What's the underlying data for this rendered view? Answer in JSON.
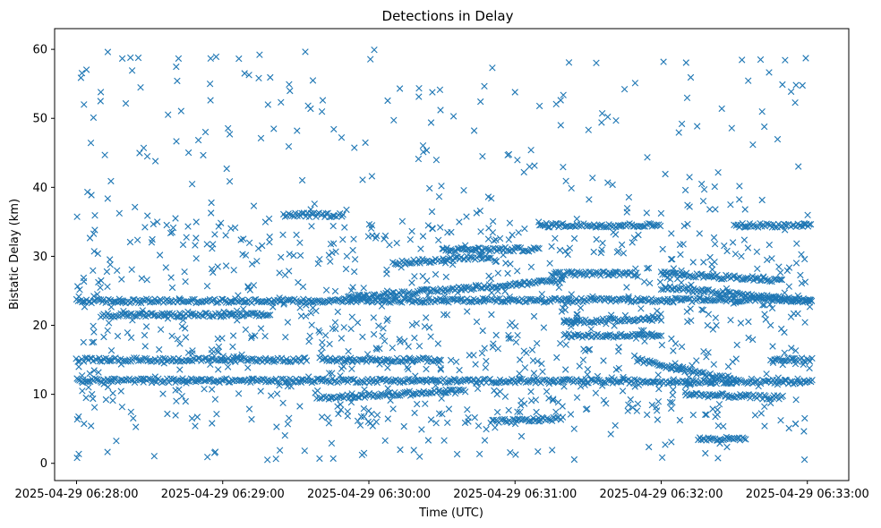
{
  "chart_data": {
    "type": "scatter",
    "title": "Detections in Delay",
    "xlabel": "Time (UTC)",
    "ylabel": "Bistatic Delay (km)",
    "marker": "x",
    "color": "#1f77b4",
    "grid": false,
    "xlim": [
      "2025-04-29 06:27:51",
      "2025-04-29 06:33:17"
    ],
    "ylim": [
      -2.5,
      63
    ],
    "x_ticks": [
      "2025-04-29 06:28:00",
      "2025-04-29 06:29:00",
      "2025-04-29 06:30:00",
      "2025-04-29 06:31:00",
      "2025-04-29 06:32:00",
      "2025-04-29 06:33:00"
    ],
    "y_ticks": [
      0,
      10,
      20,
      30,
      40,
      50,
      60
    ],
    "time_range": [
      "2025-04-29 06:28:00",
      "2025-04-29 06:33:02"
    ],
    "tracks": [
      {
        "t_start": 0,
        "t_end": 302,
        "delay_start": 23.5,
        "delay_end": 23.7
      },
      {
        "t_start": 0,
        "t_end": 95,
        "delay_start": 15.0,
        "delay_end": 15.0
      },
      {
        "t_start": 100,
        "t_end": 150,
        "delay_start": 15.0,
        "delay_end": 15.0
      },
      {
        "t_start": 0,
        "t_end": 120,
        "delay_start": 12.0,
        "delay_end": 12.0
      },
      {
        "t_start": 120,
        "t_end": 302,
        "delay_start": 12.0,
        "delay_end": 11.8
      },
      {
        "t_start": 10,
        "t_end": 80,
        "delay_start": 21.5,
        "delay_end": 21.5
      },
      {
        "t_start": 85,
        "t_end": 110,
        "delay_start": 36.0,
        "delay_end": 36.0
      },
      {
        "t_start": 110,
        "t_end": 200,
        "delay_start": 24.0,
        "delay_end": 26.5
      },
      {
        "t_start": 100,
        "t_end": 160,
        "delay_start": 9.5,
        "delay_end": 10.5
      },
      {
        "t_start": 150,
        "t_end": 190,
        "delay_start": 31.0,
        "delay_end": 31.0
      },
      {
        "t_start": 190,
        "t_end": 240,
        "delay_start": 34.5,
        "delay_end": 34.5
      },
      {
        "t_start": 195,
        "t_end": 230,
        "delay_start": 27.5,
        "delay_end": 27.5
      },
      {
        "t_start": 200,
        "t_end": 240,
        "delay_start": 20.5,
        "delay_end": 21.0
      },
      {
        "t_start": 200,
        "t_end": 240,
        "delay_start": 18.5,
        "delay_end": 18.5
      },
      {
        "t_start": 230,
        "t_end": 270,
        "delay_start": 15.0,
        "delay_end": 12.0
      },
      {
        "t_start": 240,
        "t_end": 290,
        "delay_start": 27.5,
        "delay_end": 26.5
      },
      {
        "t_start": 240,
        "t_end": 302,
        "delay_start": 25.5,
        "delay_end": 23.5
      },
      {
        "t_start": 250,
        "t_end": 290,
        "delay_start": 10.0,
        "delay_end": 9.5
      },
      {
        "t_start": 270,
        "t_end": 302,
        "delay_start": 34.5,
        "delay_end": 34.5
      },
      {
        "t_start": 285,
        "t_end": 302,
        "delay_start": 15.0,
        "delay_end": 15.0
      },
      {
        "t_start": 255,
        "t_end": 275,
        "delay_start": 3.5,
        "delay_end": 3.5
      },
      {
        "t_start": 170,
        "t_end": 200,
        "delay_start": 6.0,
        "delay_end": 6.5
      },
      {
        "t_start": 130,
        "t_end": 170,
        "delay_start": 29.0,
        "delay_end": 30.0
      }
    ],
    "noise_points_count": 1100,
    "noise_delay_range": [
      0.5,
      60
    ]
  }
}
